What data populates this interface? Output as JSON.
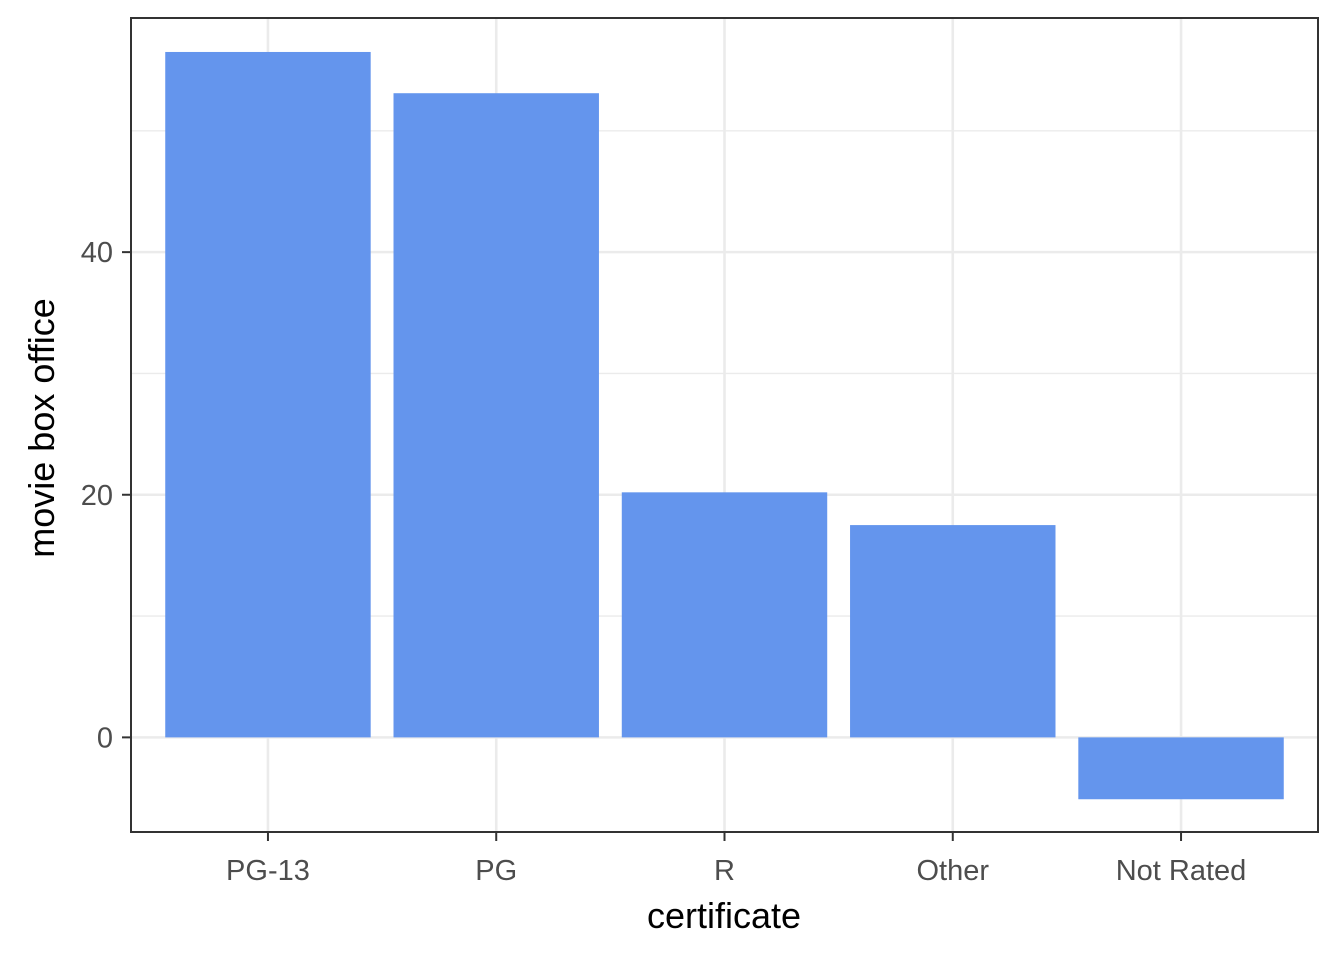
{
  "chart_data": {
    "type": "bar",
    "categories": [
      "PG-13",
      "PG",
      "R",
      "Other",
      "Not Rated"
    ],
    "values": [
      56.5,
      53.1,
      20.2,
      17.5,
      -5.1
    ],
    "xlabel": "certificate",
    "ylabel": "movie box office",
    "ylim": [
      -7.8,
      59.3
    ],
    "yticks": [
      0,
      20,
      40
    ],
    "y_minor_gridlines": [
      10,
      30,
      50
    ],
    "grid": true,
    "legend": "none",
    "colors": {
      "bar": "#6495ED",
      "grid": "#EBEBEB",
      "panel_border": "#333333",
      "tick_text": "#4D4D4D"
    }
  }
}
